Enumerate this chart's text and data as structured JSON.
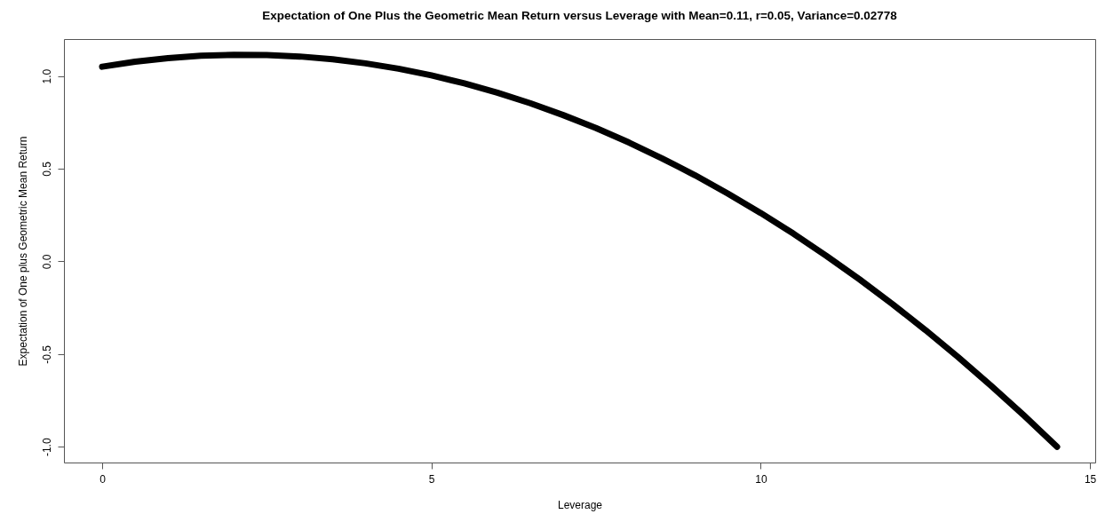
{
  "chart_data": {
    "type": "line",
    "title": "Expectation of One Plus the Geometric Mean Return versus Leverage with Mean=0.11, r=0.05, Variance=0.02778",
    "xlabel": "Leverage",
    "ylabel": "Expectation of One plus Geometric Mean Return",
    "x": [
      0,
      0.5,
      1,
      1.5,
      2,
      2.5,
      3,
      3.5,
      4,
      4.5,
      5,
      5.5,
      6,
      6.5,
      7,
      7.5,
      8,
      8.5,
      9,
      9.5,
      10,
      10.5,
      11,
      11.5,
      12,
      12.5,
      13,
      13.5,
      14,
      14.5
    ],
    "series": [
      {
        "color": "#000000",
        "values": [
          1.05,
          1.077,
          1.096,
          1.109,
          1.114,
          1.113,
          1.105,
          1.09,
          1.068,
          1.039,
          1.003,
          0.96,
          0.91,
          0.853,
          0.789,
          0.719,
          0.641,
          0.556,
          0.465,
          0.366,
          0.261,
          0.149,
          0.029,
          -0.097,
          -0.23,
          -0.37,
          -0.517,
          -0.671,
          -0.832,
          -1.0
        ]
      }
    ],
    "xlim": [
      -0.58,
      15.08
    ],
    "ylim": [
      -1.085,
      1.199
    ],
    "xticks": [
      0,
      5,
      10,
      15
    ],
    "yticks": [
      {
        "value": -1,
        "label": "-1.0"
      },
      {
        "value": -0.5,
        "label": "-0.5"
      },
      {
        "value": 0,
        "label": "0.0"
      },
      {
        "value": 0.5,
        "label": "0.5"
      },
      {
        "value": 1,
        "label": "1.0"
      }
    ],
    "grid": false,
    "marker": "none",
    "line_style": "solid"
  }
}
